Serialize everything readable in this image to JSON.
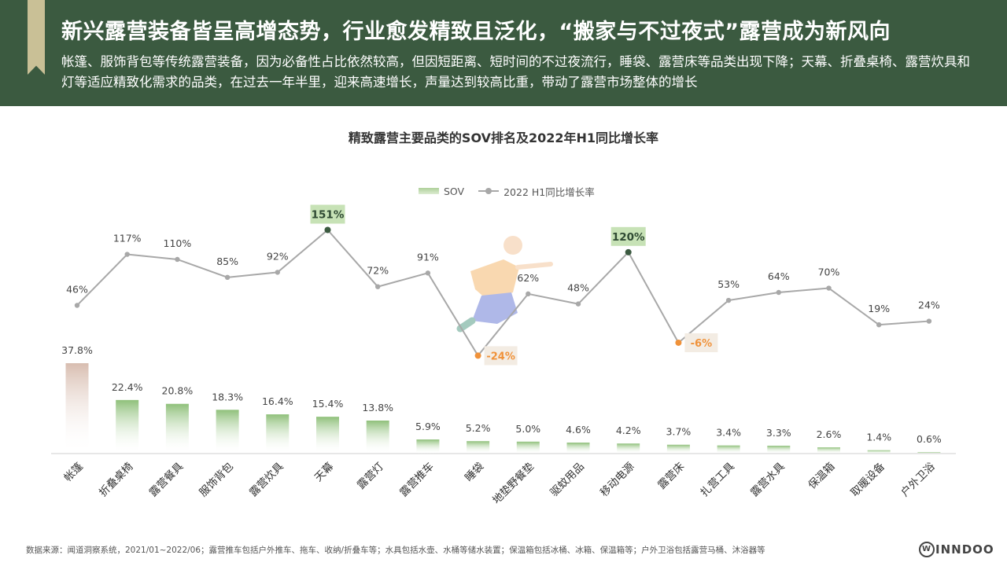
{
  "header": {
    "title": "新兴露营装备皆呈高增态势，行业愈发精致且泛化，“搬家与不过夜式”露营成为新风向",
    "subtitle": "帐篷、服饰背包等传统露营装备，因为必备性占比依然较高，但因短距离、短时间的不过夜流行，睡袋、露营床等品类出现下降；天幕、折叠桌椅、露营炊具和灯等适应精致化需求的品类，在过去一年半里，迎来高速增长，声量达到较高比重，带动了露营市场整体的增长"
  },
  "legend": {
    "sov": "SOV",
    "growth": "2022 H1同比增长率"
  },
  "chart_data": {
    "type": "bar",
    "title": "精致露营主要品类的SOV排名及2022年H1同比增长率",
    "categories": [
      "帐篷",
      "折叠桌椅",
      "露营餐具",
      "服饰背包",
      "露营炊具",
      "天幕",
      "露营灯",
      "露营推车",
      "睡袋",
      "地垫野餐垫",
      "驱蚊用品",
      "移动电源",
      "露营床",
      "扎营工具",
      "露营水具",
      "保温箱",
      "取暖设备",
      "户外卫浴"
    ],
    "series": [
      {
        "name": "SOV",
        "type": "bar",
        "values": [
          37.8,
          22.4,
          20.8,
          18.3,
          16.4,
          15.4,
          13.8,
          5.9,
          5.2,
          5.0,
          4.6,
          4.2,
          3.7,
          3.4,
          3.3,
          2.6,
          1.4,
          0.6
        ],
        "labels": [
          "37.8%",
          "22.4%",
          "20.8%",
          "18.3%",
          "16.4%",
          "15.4%",
          "13.8%",
          "5.9%",
          "5.2%",
          "5.0%",
          "4.6%",
          "4.2%",
          "3.7%",
          "3.4%",
          "3.3%",
          "2.6%",
          "1.4%",
          "0.6%"
        ],
        "color": "#8fc07a",
        "highlight_color": "#d8bdb0"
      },
      {
        "name": "2022 H1同比增长率",
        "type": "line",
        "values": [
          46,
          117,
          110,
          85,
          92,
          151,
          72,
          91,
          -24,
          62,
          48,
          120,
          -6,
          53,
          64,
          70,
          19,
          24
        ],
        "labels": [
          "46%",
          "117%",
          "110%",
          "85%",
          "92%",
          "151%",
          "72%",
          "91%",
          "-24%",
          "62%",
          "48%",
          "120%",
          "-6%",
          "53%",
          "64%",
          "70%",
          "19%",
          "24%"
        ],
        "color": "#a8a8a8",
        "highlight_high_color": "#3b5a40",
        "highlight_high_bg": "#c7e2b6",
        "highlight_low_color": "#f0923a",
        "highlight_low_bg": "#f3ece3"
      }
    ],
    "highlighted_high": [
      5,
      11
    ],
    "highlighted_low": [
      8,
      12
    ],
    "bar_ylim": [
      0,
      40
    ],
    "line_ylim": [
      -50,
      170
    ]
  },
  "footer": {
    "source": "数据来源：闻道洞察系统，2021/01~2022/06；露营推车包括户外推车、拖车、收纳/折叠车等；水具包括水壶、水桶等储水装置；保温箱包括冰桶、冰箱、保温箱等；户外卫浴包括露营马桶、沐浴器等",
    "logo": "INNDOO",
    "logo_mark": "W"
  }
}
